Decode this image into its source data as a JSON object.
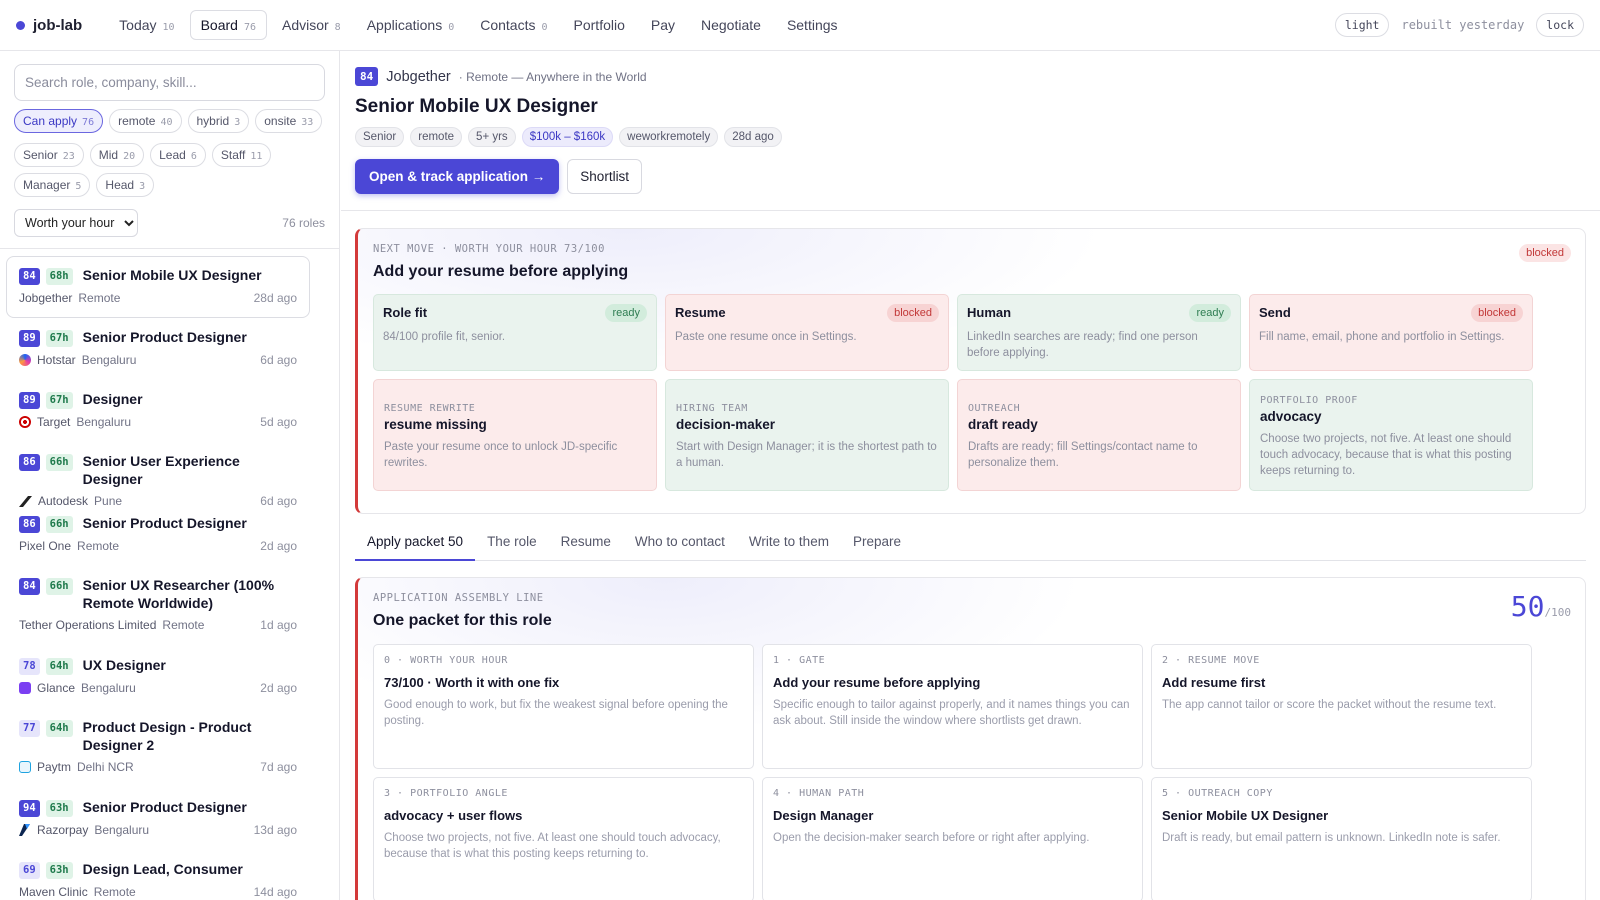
{
  "app": {
    "name": "job-lab"
  },
  "nav": [
    {
      "label": "Today",
      "count": "10"
    },
    {
      "label": "Board",
      "count": "76"
    },
    {
      "label": "Advisor",
      "count": "8"
    },
    {
      "label": "Applications",
      "count": "0"
    },
    {
      "label": "Contacts",
      "count": "0"
    },
    {
      "label": "Portfolio",
      "count": ""
    },
    {
      "label": "Pay",
      "count": ""
    },
    {
      "label": "Negotiate",
      "count": ""
    },
    {
      "label": "Settings",
      "count": ""
    }
  ],
  "nav_right": {
    "theme": "light",
    "rebuilt": "rebuilt yesterday",
    "lock": "lock"
  },
  "sidebar": {
    "search_placeholder": "Search role, company, skill...",
    "chips_row1": [
      {
        "label": "Can apply",
        "count": "76"
      },
      {
        "label": "remote",
        "count": "40"
      },
      {
        "label": "hybrid",
        "count": "3"
      },
      {
        "label": "onsite",
        "count": "33"
      }
    ],
    "chips_row2": [
      {
        "label": "Senior",
        "count": "23"
      },
      {
        "label": "Mid",
        "count": "20"
      },
      {
        "label": "Lead",
        "count": "6"
      },
      {
        "label": "Staff",
        "count": "11"
      },
      {
        "label": "Manager",
        "count": "5"
      },
      {
        "label": "Head",
        "count": "3"
      }
    ],
    "sort": {
      "selected": "Worth your hour"
    },
    "roles_count": "76 roles",
    "jobs": [
      {
        "score": "84",
        "hours": "68h",
        "title": "Senior Mobile UX Designer",
        "company": "Jobgether",
        "location": "Remote",
        "ago": "28d ago"
      },
      {
        "score": "89",
        "hours": "67h",
        "title": "Senior Product Designer",
        "company": "Hotstar",
        "location": "Bengaluru",
        "ago": "6d ago"
      },
      {
        "score": "89",
        "hours": "67h",
        "title": "Designer",
        "company": "Target",
        "location": "Bengaluru",
        "ago": "5d ago"
      },
      {
        "score": "86",
        "hours": "66h",
        "title": "Senior User Experience Designer",
        "company": "Autodesk",
        "location": "Pune",
        "ago": "6d ago"
      },
      {
        "score": "86",
        "hours": "66h",
        "title": "Senior Product Designer",
        "company": "Pixel One",
        "location": "Remote",
        "ago": "2d ago"
      },
      {
        "score": "84",
        "hours": "66h",
        "title": "Senior UX Researcher (100% Remote Worldwide)",
        "company": "Tether Operations Limited",
        "location": "Remote",
        "ago": "1d ago"
      },
      {
        "score": "78",
        "hours": "64h",
        "title": "UX Designer",
        "company": "Glance",
        "location": "Bengaluru",
        "ago": "2d ago"
      },
      {
        "score": "77",
        "hours": "64h",
        "title": "Product Design - Product Designer 2",
        "company": "Paytm",
        "location": "Delhi NCR",
        "ago": "7d ago"
      },
      {
        "score": "94",
        "hours": "63h",
        "title": "Senior Product Designer",
        "company": "Razorpay",
        "location": "Bengaluru",
        "ago": "13d ago"
      },
      {
        "score": "69",
        "hours": "63h",
        "title": "Design Lead, Consumer",
        "company": "Maven Clinic",
        "location": "Remote",
        "ago": "14d ago"
      }
    ]
  },
  "detail": {
    "score": "84",
    "company": "Jobgether",
    "location_line": "· Remote — Anywhere in the World",
    "title": "Senior Mobile UX Designer",
    "tags": [
      "Senior",
      "remote",
      "5+ yrs",
      "$100k – $160k",
      "weworkremotely",
      "28d ago"
    ],
    "primary_button": "Open & track application →",
    "secondary_button": "Shortlist"
  },
  "next_move": {
    "kicker": "NEXT MOVE · WORTH YOUR HOUR 73/100",
    "title": "Add your resume before applying",
    "badge": "blocked",
    "checks": [
      {
        "title": "Role fit",
        "status": "ready",
        "desc": "84/100 profile fit, senior."
      },
      {
        "title": "Resume",
        "status": "blocked",
        "desc": "Paste one resume once in Settings."
      },
      {
        "title": "Human",
        "status": "ready",
        "desc": "LinkedIn searches are ready; find one person before applying."
      },
      {
        "title": "Send",
        "status": "blocked",
        "desc": "Fill name, email, phone and portfolio in Settings."
      }
    ],
    "details": [
      {
        "kicker": "RESUME REWRITE",
        "title": "resume missing",
        "desc": "Paste your resume once to unlock JD-specific rewrites."
      },
      {
        "kicker": "HIRING TEAM",
        "title": "decision-maker",
        "desc": "Start with Design Manager; it is the shortest path to a human."
      },
      {
        "kicker": "OUTREACH",
        "title": "draft ready",
        "desc": "Drafts are ready; fill Settings/contact name to personalize them."
      },
      {
        "kicker": "PORTFOLIO PROOF",
        "title": "advocacy",
        "desc": "Choose two projects, not five. At least one should touch advocacy, because that is what this posting keeps returning to."
      }
    ]
  },
  "tabs": [
    "Apply packet 50",
    "The role",
    "Resume",
    "Who to contact",
    "Write to them",
    "Prepare"
  ],
  "packet": {
    "kicker": "APPLICATION ASSEMBLY LINE",
    "title": "One packet for this role",
    "score": "50",
    "score_max": "/100",
    "steps": [
      {
        "kicker": "0 · WORTH YOUR HOUR",
        "title": "73/100 · Worth it with one fix",
        "desc": "Good enough to work, but fix the weakest signal before opening the posting."
      },
      {
        "kicker": "1 · GATE",
        "title": "Add your resume before applying",
        "desc": "Specific enough to tailor against properly, and it names things you can ask about. Still inside the window where shortlists get drawn."
      },
      {
        "kicker": "2 · RESUME MOVE",
        "title": "Add resume first",
        "desc": "The app cannot tailor or score the packet without the resume text."
      },
      {
        "kicker": "3 · PORTFOLIO ANGLE",
        "title": "advocacy + user flows",
        "desc": "Choose two projects, not five. At least one should touch advocacy, because that is what this posting keeps returning to."
      },
      {
        "kicker": "4 · HUMAN PATH",
        "title": "Design Manager",
        "desc": "Open the decision-maker search before or right after applying."
      },
      {
        "kicker": "5 · OUTREACH COPY",
        "title": "Senior Mobile UX Designer",
        "desc": "Draft is ready, but email pattern is unknown. LinkedIn note is safer."
      }
    ]
  },
  "colors": {
    "accent": "#4b47d6",
    "danger": "#d33a3a",
    "ok": "#2f7d52"
  }
}
